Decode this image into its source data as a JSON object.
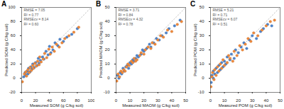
{
  "chart_data": [
    {
      "type": "scatter",
      "title": "A",
      "x_label": "Measured SOM (g C/kg soil)",
      "y_label": "Predicted SOM (g C/kg soil)",
      "xlim": [
        0,
        100
      ],
      "ylim": [
        -20,
        100
      ],
      "xticks": [
        0,
        20,
        40,
        60,
        80,
        100
      ],
      "yticks": [
        -20,
        0,
        20,
        40,
        60,
        80,
        100
      ],
      "annotations": [
        "RMSE = 7.05",
        "R² = 0.77",
        "RMSEcv = 8.14",
        "R² = 0.60"
      ],
      "series": [
        {
          "color": "#4f86cf",
          "marker": "circle",
          "x": [
            3,
            5,
            6,
            8,
            9,
            10,
            12,
            13,
            15,
            16,
            18,
            20,
            22,
            24,
            25,
            27,
            30,
            32,
            35,
            38,
            40,
            42,
            45,
            48,
            52,
            55,
            60,
            65,
            72,
            80
          ],
          "y": [
            2,
            8,
            4,
            10,
            6,
            14,
            9,
            16,
            13,
            20,
            15,
            22,
            18,
            28,
            21,
            25,
            30,
            27,
            38,
            33,
            45,
            36,
            40,
            50,
            46,
            55,
            52,
            58,
            62,
            70
          ]
        },
        {
          "color": "#f28a3a",
          "marker": "circle",
          "x": [
            1,
            4,
            6,
            7,
            9,
            11,
            12,
            14,
            16,
            17,
            19,
            21,
            23,
            25,
            26,
            28,
            31,
            33,
            36,
            39,
            41,
            44,
            47,
            50,
            54,
            58,
            62,
            68,
            75,
            82
          ],
          "y": [
            -5,
            6,
            9,
            3,
            12,
            8,
            15,
            11,
            18,
            14,
            21,
            17,
            24,
            19,
            30,
            23,
            27,
            35,
            29,
            41,
            34,
            44,
            38,
            48,
            44,
            50,
            56,
            60,
            65,
            72
          ]
        }
      ]
    },
    {
      "type": "scatter",
      "title": "B",
      "x_label": "Measured MAOM (g C/kg soil)",
      "y_label": "Predicted MAOM (g C/kg soil)",
      "xlim": [
        0,
        50
      ],
      "ylim": [
        -10,
        50
      ],
      "xticks": [
        0,
        10,
        20,
        30,
        40,
        50
      ],
      "yticks": [
        -10,
        0,
        10,
        20,
        30,
        40,
        50
      ],
      "annotations": [
        "RMSE = 3.71",
        "R² = 0.84",
        "RMSEcv = 4.32",
        "R² = 0.78"
      ],
      "series": [
        {
          "color": "#4f86cf",
          "marker": "circle",
          "x": [
            1,
            2,
            3,
            4,
            5,
            6,
            7,
            8,
            9,
            10,
            11,
            12,
            13,
            14,
            15,
            16,
            18,
            19,
            20,
            22,
            24,
            25,
            27,
            29,
            31,
            33,
            36,
            38,
            42,
            46
          ],
          "y": [
            2,
            0,
            4,
            3,
            7,
            5,
            8,
            9,
            7,
            11,
            10,
            13,
            12,
            14,
            16,
            15,
            17,
            20,
            19,
            21,
            24,
            22,
            25,
            28,
            27,
            30,
            32,
            35,
            37,
            41
          ]
        },
        {
          "color": "#f28a3a",
          "marker": "circle",
          "x": [
            0.5,
            1.5,
            2.5,
            3.5,
            4.5,
            5.5,
            6.5,
            7.5,
            8.5,
            9.5,
            11,
            12,
            13,
            14,
            15,
            17,
            18,
            20,
            21,
            23,
            25,
            26,
            28,
            30,
            32,
            34,
            37,
            40,
            44,
            47
          ],
          "y": [
            -2,
            3,
            1,
            5,
            4,
            6,
            5,
            8,
            10,
            9,
            12,
            11,
            14,
            12,
            13,
            16,
            18,
            17,
            20,
            22,
            21,
            25,
            24,
            27,
            30,
            29,
            34,
            33,
            38,
            40
          ]
        }
      ]
    },
    {
      "type": "scatter",
      "title": "C",
      "x_label": "Measured POM (g C/kg soil)",
      "y_label": "Predicted POM (g C/kg soil)",
      "xlim": [
        0,
        50
      ],
      "ylim": [
        -10,
        50
      ],
      "xticks": [
        0,
        10,
        20,
        30,
        40,
        50
      ],
      "yticks": [
        -10,
        0,
        10,
        20,
        30,
        40,
        50
      ],
      "annotations": [
        "RMSE = 5.21",
        "R² = 0.71",
        "RMSEcv = 6.07",
        "R² = 0.51"
      ],
      "series": [
        {
          "color": "#4f86cf",
          "marker": "circle",
          "x": [
            0.5,
            1,
            2,
            2,
            3,
            4,
            5,
            6,
            7,
            8,
            9,
            10,
            11,
            12,
            14,
            15,
            17,
            18,
            20,
            22,
            24,
            26,
            28,
            30,
            33,
            36,
            38,
            41,
            44
          ],
          "y": [
            -3,
            2,
            0,
            5,
            3,
            7,
            4,
            9,
            6,
            11,
            8,
            12,
            10,
            15,
            13,
            17,
            14,
            20,
            18,
            22,
            25,
            21,
            27,
            30,
            28,
            33,
            35,
            38,
            37
          ]
        },
        {
          "color": "#f28a3a",
          "marker": "circle",
          "x": [
            0.3,
            1,
            1.5,
            2.5,
            3,
            4,
            5,
            6,
            7,
            8,
            9,
            10,
            12,
            13,
            14,
            16,
            17,
            19,
            21,
            23,
            25,
            27,
            29,
            31,
            34,
            37,
            40,
            43,
            46
          ],
          "y": [
            -6,
            1,
            4,
            -1,
            6,
            2,
            8,
            5,
            10,
            7,
            13,
            9,
            11,
            16,
            14,
            12,
            19,
            16,
            23,
            20,
            24,
            28,
            26,
            32,
            30,
            34,
            37,
            40,
            41
          ]
        }
      ]
    }
  ]
}
